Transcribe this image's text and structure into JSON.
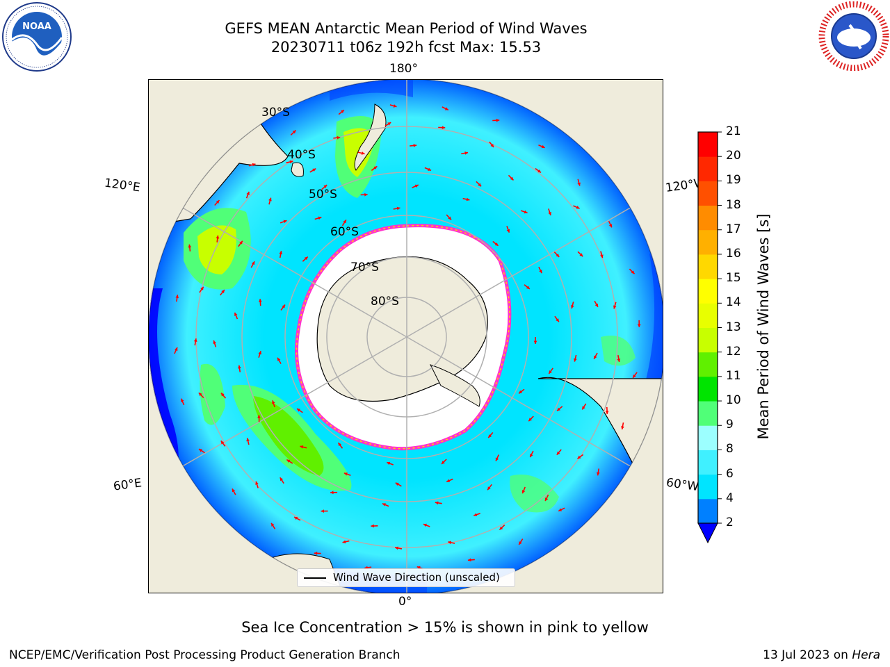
{
  "header": {
    "title_line1": "GEFS MEAN Antarctic Mean Period of Wind Waves",
    "title_line2": "20230711 t06z 192h fcst   Max: 15.53"
  },
  "logos": {
    "left": {
      "icon": "noaa-logo-icon",
      "text": "NOAA",
      "ring_text": "NATIONAL OCEANIC AND ATMOSPHERIC ADMINISTRATION · U.S. DEPARTMENT OF COMMERCE"
    },
    "right": {
      "icon": "nws-logo-icon",
      "ring_text": "NATIONAL WEATHER SERVICE"
    }
  },
  "map": {
    "projection": "south-polar-stereographic",
    "longitude_labels": {
      "top": "180°",
      "bottom": "0°",
      "upper_left": "120°E",
      "lower_left": "60°E",
      "upper_right": "120°W",
      "lower_right": "60°W"
    },
    "latitude_labels": [
      "30°S",
      "40°S",
      "50°S",
      "60°S",
      "70°S",
      "80°S"
    ],
    "colors": {
      "land": "#efecdc",
      "ocean_base": "#00e4ff",
      "ice": "#ffffff",
      "ice_edge": "#ff33cc",
      "arrow": "#ff0000",
      "grid": "#b0b0b0"
    }
  },
  "legend": {
    "label": "Wind Wave Direction (unscaled)"
  },
  "colorbar": {
    "label": "Mean Period of Wind Waves [s]",
    "ticks": [
      "2",
      "4",
      "6",
      "8",
      "9",
      "10",
      "11",
      "12",
      "13",
      "14",
      "15",
      "16",
      "17",
      "18",
      "19",
      "20",
      "21"
    ],
    "colors": [
      "#0000ff",
      "#0080ff",
      "#00e4ff",
      "#40f0ff",
      "#9cffff",
      "#50ff78",
      "#00e400",
      "#60f000",
      "#c8ff00",
      "#e8ff00",
      "#ffff00",
      "#ffd800",
      "#ffb000",
      "#ff8c00",
      "#ff5000",
      "#ff2800",
      "#ff0000"
    ]
  },
  "chart_data": {
    "type": "heatmap",
    "title": "GEFS MEAN Antarctic Mean Period of Wind Waves",
    "subtitle": "20230711 t06z 192h fcst   Max: 15.53",
    "variable": "Mean Period of Wind Waves",
    "units": "s",
    "max_value": 15.53,
    "colorbar_range": [
      2,
      21
    ],
    "extend": "min"
  },
  "footer": {
    "note": "Sea Ice Concentration > 15% is shown in pink to yellow",
    "credit_left": "NCEP/EMC/Verification Post Processing Product Generation Branch",
    "credit_date": "13 Jul 2023 on ",
    "credit_machine": "Hera"
  }
}
